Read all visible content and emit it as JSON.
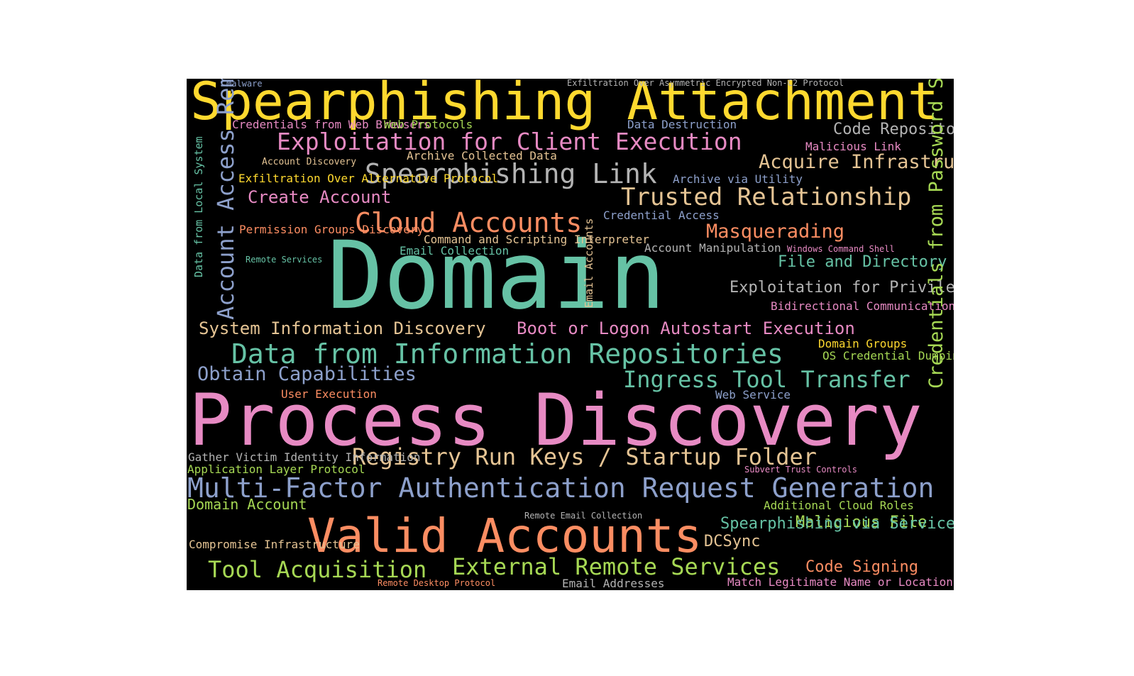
{
  "colors": {
    "background": "#000000",
    "page": "#ffffff",
    "green": "#66c2a5",
    "orange": "#fc8d62",
    "blue": "#8da0cb",
    "pink": "#e78ac3",
    "lime": "#a6d854",
    "yellow": "#ffd92f",
    "tan": "#e5c494",
    "gray": "#b3b3b3"
  },
  "words": [
    {
      "text": "Domain",
      "color": "#66c2a5"
    },
    {
      "text": "Process Discovery",
      "color": "#e78ac3"
    },
    {
      "text": "Spearphishing Attachment",
      "color": "#ffd92f"
    },
    {
      "text": "Valid Accounts",
      "color": "#fc8d62"
    },
    {
      "text": "Multi-Factor Authentication Request Generation",
      "color": "#8da0cb"
    },
    {
      "text": "Data from Information Repositories",
      "color": "#66c2a5"
    },
    {
      "text": "Spearphishing Link",
      "color": "#b3b3b3"
    },
    {
      "text": "Exploitation for Client Execution",
      "color": "#e78ac3"
    },
    {
      "text": "Cloud Accounts",
      "color": "#fc8d62"
    },
    {
      "text": "Trusted Relationship",
      "color": "#e5c494"
    },
    {
      "text": "Registry Run Keys / Startup Folder",
      "color": "#e5c494"
    },
    {
      "text": "Ingress Tool Transfer",
      "color": "#66c2a5"
    },
    {
      "text": "External Remote Services",
      "color": "#a6d854"
    },
    {
      "text": "Tool Acquisition",
      "color": "#a6d854"
    },
    {
      "text": "Masquerading",
      "color": "#fc8d62"
    },
    {
      "text": "Acquire Infrastructure",
      "color": "#e5c494"
    },
    {
      "text": "Obtain Capabilities",
      "color": "#8da0cb"
    },
    {
      "text": "Create Account",
      "color": "#e78ac3"
    },
    {
      "text": "Boot or Logon Autostart Execution",
      "color": "#e78ac3"
    },
    {
      "text": "System Information Discovery",
      "color": "#e5c494"
    },
    {
      "text": "Exploitation for Privilege Escalation",
      "color": "#b3b3b3"
    },
    {
      "text": "File and Directory Discovery",
      "color": "#66c2a5"
    },
    {
      "text": "Code Repositories",
      "color": "#b3b3b3"
    },
    {
      "text": "Code Signing",
      "color": "#fc8d62"
    },
    {
      "text": "DCSync",
      "color": "#e5c494"
    },
    {
      "text": "Malicious File",
      "color": "#a6d854"
    },
    {
      "text": "Spearphishing via Service",
      "color": "#66c2a5"
    },
    {
      "text": "Domain Account",
      "color": "#a6d854"
    },
    {
      "text": "Malware",
      "color": "#8da0cb"
    },
    {
      "text": "Exfiltration Over Asymmetric Encrypted Non-C2 Protocol",
      "color": "#b3b3b3"
    },
    {
      "text": "Credentials from Web Browsers",
      "color": "#e78ac3"
    },
    {
      "text": "Web Protocols",
      "color": "#a6d854"
    },
    {
      "text": "Data Destruction",
      "color": "#8da0cb"
    },
    {
      "text": "Malicious Link",
      "color": "#e78ac3"
    },
    {
      "text": "Archive Collected Data",
      "color": "#e5c494"
    },
    {
      "text": "Account Discovery",
      "color": "#e5c494"
    },
    {
      "text": "Exfiltration Over Alternative Protocol",
      "color": "#ffd92f"
    },
    {
      "text": "Archive via Utility",
      "color": "#8da0cb"
    },
    {
      "text": "Credential Access",
      "color": "#8da0cb"
    },
    {
      "text": "Permission Groups Discovery",
      "color": "#fc8d62"
    },
    {
      "text": "Command and Scripting Interpreter",
      "color": "#e5c494"
    },
    {
      "text": "Email Collection",
      "color": "#66c2a5"
    },
    {
      "text": "Account Manipulation",
      "color": "#b3b3b3"
    },
    {
      "text": "Windows Command Shell",
      "color": "#e78ac3"
    },
    {
      "text": "Remote Services",
      "color": "#66c2a5"
    },
    {
      "text": "Bidirectional Communication",
      "color": "#e78ac3"
    },
    {
      "text": "Domain Groups",
      "color": "#ffd92f"
    },
    {
      "text": "OS Credential Dumping",
      "color": "#a6d854"
    },
    {
      "text": "User Execution",
      "color": "#fc8d62"
    },
    {
      "text": "Web Service",
      "color": "#8da0cb"
    },
    {
      "text": "Gather Victim Identity Information",
      "color": "#b3b3b3"
    },
    {
      "text": "Application Layer Protocol",
      "color": "#a6d854"
    },
    {
      "text": "Subvert Trust Controls",
      "color": "#e78ac3"
    },
    {
      "text": "Additional Cloud Roles",
      "color": "#a6d854"
    },
    {
      "text": "Remote Email Collection",
      "color": "#b3b3b3"
    },
    {
      "text": "Compromise Infrastructure",
      "color": "#e5c494"
    },
    {
      "text": "Remote Desktop Protocol",
      "color": "#fc8d62"
    },
    {
      "text": "Email Addresses",
      "color": "#b3b3b3"
    },
    {
      "text": "Match Legitimate Name or Location",
      "color": "#e78ac3"
    },
    {
      "text": "Account Access Removal",
      "color": "#8da0cb"
    },
    {
      "text": "Credentials from Password Stores",
      "color": "#a6d854"
    },
    {
      "text": "Data from Local System",
      "color": "#66c2a5"
    },
    {
      "text": "Email Accounts",
      "color": "#e5c494"
    }
  ]
}
